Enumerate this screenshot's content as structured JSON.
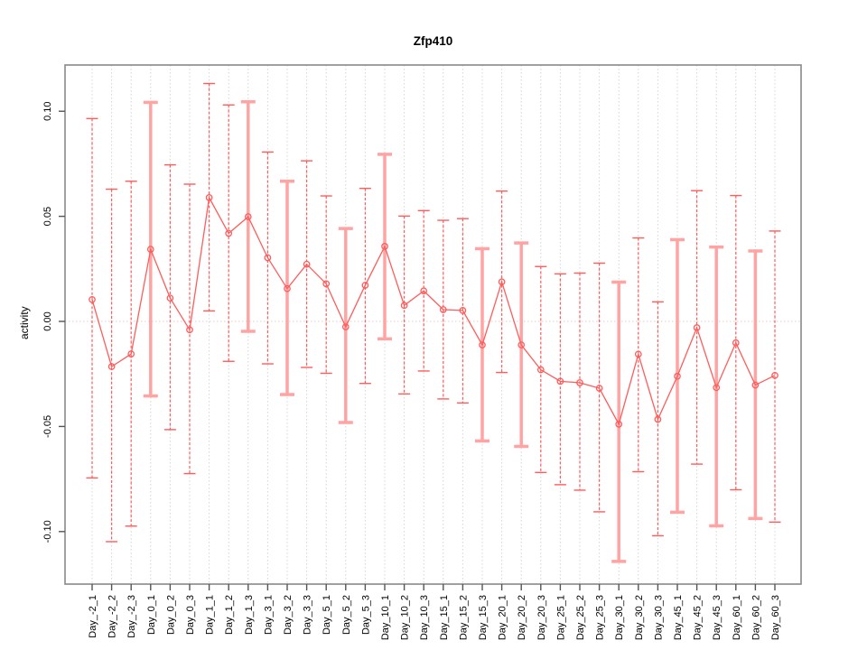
{
  "chart_data": {
    "type": "line",
    "subtype": "points-with-error-bars",
    "title": "Zfp410",
    "xlabel": "",
    "ylabel": "activity",
    "legend": "none",
    "grid": "vertical-dotted-gridlines-and-dotted-zero-line",
    "ylim": [
      -0.125,
      0.122
    ],
    "yticks": [
      -0.1,
      -0.05,
      0.0,
      0.05,
      0.1
    ],
    "ytick_labels": [
      "-0.10",
      "-0.05",
      "0.00",
      "0.05",
      "0.10"
    ],
    "categories": [
      "Day_-2_1",
      "Day_-2_2",
      "Day_-2_3",
      "Day_0_1",
      "Day_0_2",
      "Day_0_3",
      "Day_1_1",
      "Day_1_2",
      "Day_1_3",
      "Day_3_1",
      "Day_3_2",
      "Day_3_3",
      "Day_5_1",
      "Day_5_2",
      "Day_5_3",
      "Day_10_1",
      "Day_10_2",
      "Day_10_3",
      "Day_15_1",
      "Day_15_2",
      "Day_15_3",
      "Day_20_1",
      "Day_20_2",
      "Day_20_3",
      "Day_25_1",
      "Day_25_2",
      "Day_25_3",
      "Day_30_1",
      "Day_30_2",
      "Day_30_3",
      "Day_45_1",
      "Day_45_2",
      "Day_45_3",
      "Day_60_1",
      "Day_60_2",
      "Day_60_3"
    ],
    "series": [
      {
        "name": "activity",
        "values": [
          0.0104,
          -0.0215,
          -0.0155,
          0.0343,
          0.0111,
          -0.004,
          0.0589,
          0.0419,
          0.0498,
          0.0303,
          0.0156,
          0.0272,
          0.0179,
          -0.0026,
          0.0172,
          0.0357,
          0.0076,
          0.0145,
          0.0056,
          0.0052,
          -0.0112,
          0.0188,
          -0.0112,
          -0.023,
          -0.0285,
          -0.0292,
          -0.0318,
          -0.0489,
          -0.0156,
          -0.0466,
          -0.0261,
          -0.003,
          -0.0315,
          -0.0102,
          -0.0303,
          -0.0257
        ],
        "upper": [
          0.0965,
          0.0629,
          0.0667,
          0.1042,
          0.0745,
          0.0653,
          0.1132,
          0.103,
          0.1045,
          0.0806,
          0.0667,
          0.0764,
          0.0597,
          0.0442,
          0.0633,
          0.0795,
          0.0501,
          0.0527,
          0.0481,
          0.0489,
          0.0346,
          0.062,
          0.0373,
          0.0261,
          0.0226,
          0.023,
          0.0277,
          0.0187,
          0.0397,
          0.0093,
          0.0389,
          0.0622,
          0.0354,
          0.0599,
          0.0335,
          0.043
        ],
        "lower": [
          -0.0745,
          -0.1048,
          -0.0974,
          -0.0355,
          -0.0515,
          -0.0724,
          0.005,
          -0.019,
          -0.0047,
          -0.0202,
          -0.0348,
          -0.0219,
          -0.0247,
          -0.0481,
          -0.0295,
          -0.0083,
          -0.0345,
          -0.0236,
          -0.0369,
          -0.0388,
          -0.0569,
          -0.0243,
          -0.0595,
          -0.0719,
          -0.0777,
          -0.0803,
          -0.0906,
          -0.1142,
          -0.0715,
          -0.102,
          -0.0908,
          -0.0679,
          -0.0973,
          -0.0801,
          -0.0938,
          -0.0955
        ]
      }
    ],
    "wide_bar_indices": [
      3,
      8,
      10,
      13,
      15,
      20,
      22,
      27,
      30,
      32,
      34
    ],
    "colors": {
      "series_line": "#ff5c5c",
      "error_bar": "#ff5c5c",
      "error_bar_wide": "#ffa3a3",
      "gridline": "#d4d4d4",
      "zero_line": "#e3cbcb",
      "frame": "#888888",
      "tick": "#555555",
      "text": "#000000"
    }
  }
}
